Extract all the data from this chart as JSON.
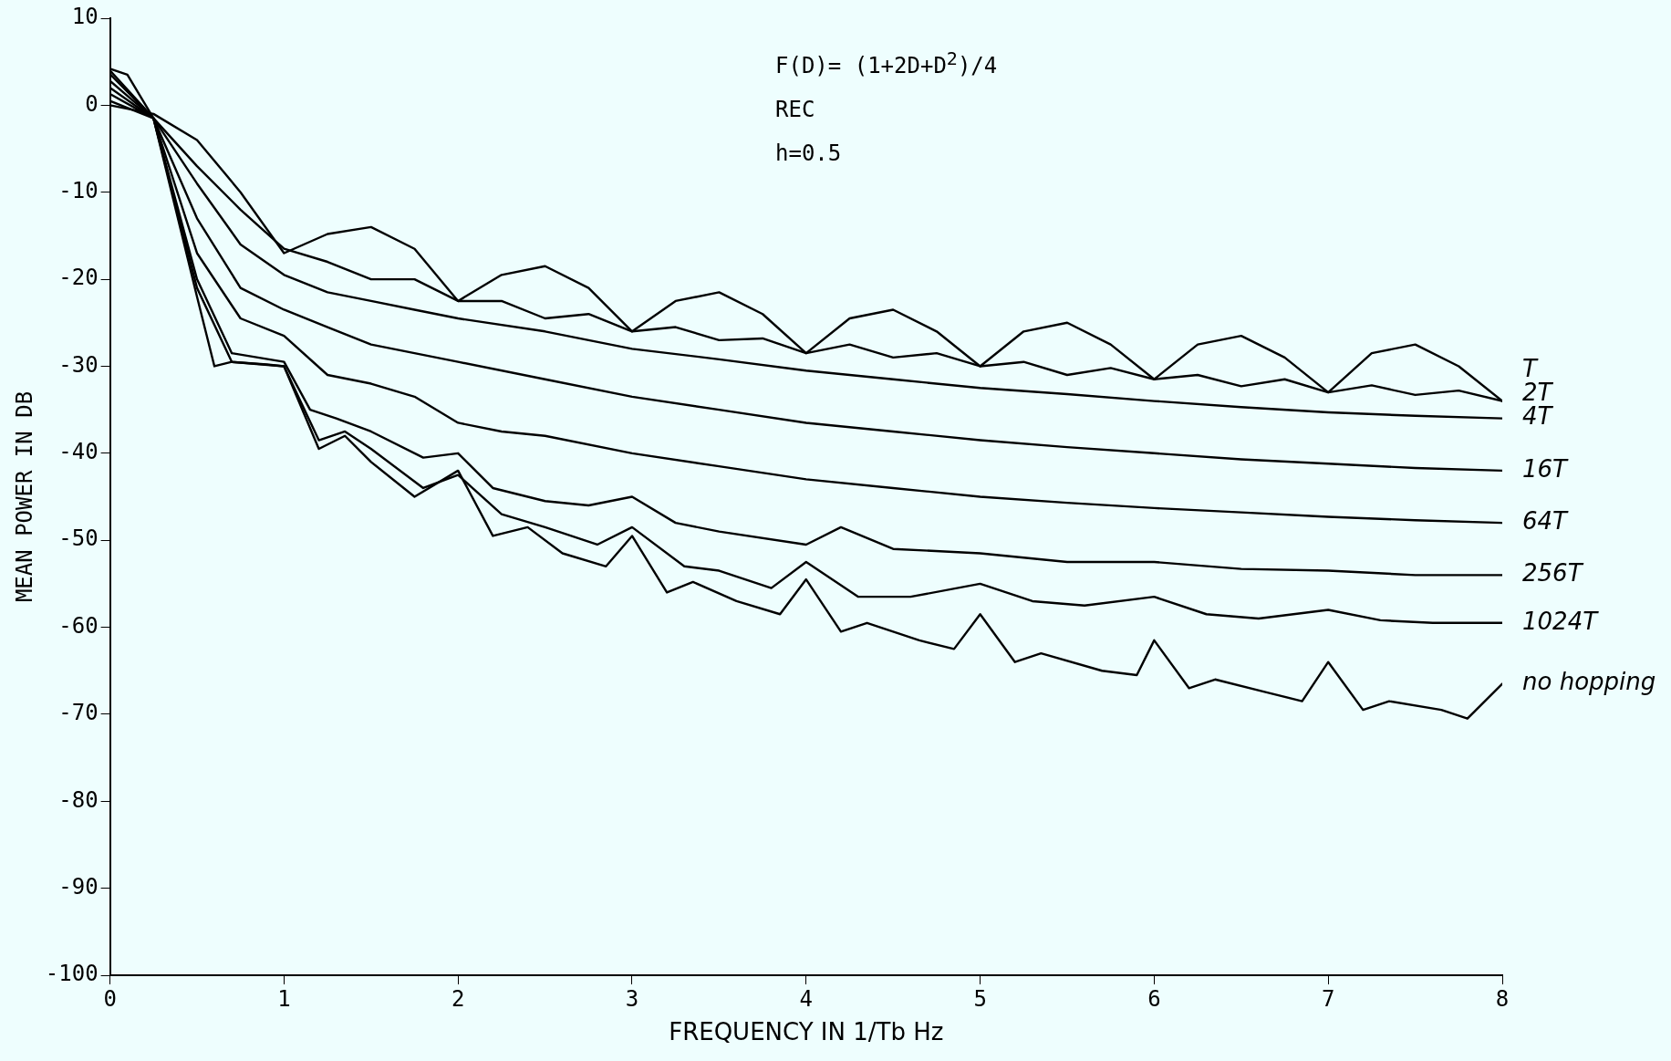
{
  "chart_data": {
    "type": "line",
    "xlabel": "FREQUENCY IN 1/Tb Hz",
    "ylabel": "MEAN POWER IN DB",
    "annotations": [
      "F(D)= (1+2D+D$^{2}$)/4",
      "REC",
      "h=0.5"
    ],
    "xlim": [
      0,
      8
    ],
    "xticks": [
      0,
      1,
      2,
      3,
      4,
      5,
      6,
      7,
      8
    ],
    "ylim": [
      -100,
      10
    ],
    "yticks": [
      -100,
      -90,
      -80,
      -70,
      -60,
      -50,
      -40,
      -30,
      -20,
      -10,
      0,
      10
    ],
    "grid": false,
    "legend": false,
    "marker": "none",
    "line_style": "solid",
    "series": [
      {
        "name": "T",
        "color": "#000000",
        "x": [
          0,
          0.25,
          0.5,
          0.75,
          1,
          1.25,
          1.5,
          1.75,
          2,
          2.25,
          2.5,
          2.75,
          3,
          3.25,
          3.5,
          3.75,
          4,
          4.25,
          4.5,
          4.75,
          5,
          5.25,
          5.5,
          5.75,
          6,
          6.25,
          6.5,
          6.75,
          7,
          7.25,
          7.5,
          7.75,
          8
        ],
        "values": [
          0,
          -1,
          -4,
          -10,
          -17,
          -14.8,
          -14,
          -16.5,
          -22.5,
          -19.5,
          -18.5,
          -21,
          -26,
          -22.5,
          -21.5,
          -24,
          -28.5,
          -24.5,
          -23.5,
          -26,
          -30,
          -26,
          -25,
          -27.5,
          -31.5,
          -27.5,
          -26.5,
          -29,
          -33,
          -28.5,
          -27.5,
          -30,
          -34
        ]
      },
      {
        "name": "2T",
        "color": "#000000",
        "x": [
          0,
          0.25,
          0.5,
          0.75,
          1,
          1.25,
          1.5,
          1.75,
          2,
          2.25,
          2.5,
          2.75,
          3,
          3.25,
          3.5,
          3.75,
          4,
          4.25,
          4.5,
          4.75,
          5,
          5.25,
          5.5,
          5.75,
          6,
          6.25,
          6.5,
          6.75,
          7,
          7.25,
          7.5,
          7.75,
          8
        ],
        "values": [
          0.5,
          -1.5,
          -7,
          -12,
          -16.5,
          -18,
          -20,
          -20,
          -22.5,
          -22.5,
          -24.5,
          -24,
          -26,
          -25.5,
          -27,
          -26.8,
          -28.5,
          -27.5,
          -29,
          -28.5,
          -30,
          -29.5,
          -31,
          -30.2,
          -31.5,
          -31,
          -32.3,
          -31.5,
          -33,
          -32.2,
          -33.3,
          -32.8,
          -34
        ]
      },
      {
        "name": "4T",
        "color": "#000000",
        "x": [
          0,
          0.25,
          0.5,
          0.75,
          1,
          1.25,
          1.5,
          1.75,
          2,
          2.5,
          3,
          3.5,
          4,
          4.5,
          5,
          5.5,
          6,
          6.5,
          7,
          7.5,
          8
        ],
        "values": [
          1.3,
          -1.5,
          -9,
          -16,
          -19.5,
          -21.5,
          -22.5,
          -23.5,
          -24.5,
          -26,
          -28,
          -29.2,
          -30.5,
          -31.5,
          -32.5,
          -33.2,
          -34,
          -34.7,
          -35.3,
          -35.7,
          -36
        ]
      },
      {
        "name": "16T",
        "color": "#000000",
        "x": [
          0,
          0.25,
          0.5,
          0.75,
          1,
          1.25,
          1.5,
          1.75,
          2,
          2.5,
          3,
          3.5,
          4,
          4.5,
          5,
          5.5,
          6,
          6.5,
          7,
          7.5,
          8
        ],
        "values": [
          2,
          -1.5,
          -13,
          -21,
          -23.5,
          -25.5,
          -27.5,
          -28.5,
          -29.5,
          -31.5,
          -33.5,
          -35,
          -36.5,
          -37.5,
          -38.5,
          -39.3,
          -40,
          -40.7,
          -41.2,
          -41.7,
          -42
        ]
      },
      {
        "name": "64T",
        "color": "#000000",
        "x": [
          0,
          0.25,
          0.5,
          0.75,
          1,
          1.25,
          1.5,
          1.75,
          2,
          2.25,
          2.5,
          3,
          3.5,
          4,
          4.5,
          5,
          5.5,
          6,
          6.5,
          7,
          7.5,
          8
        ],
        "values": [
          2.8,
          -1.5,
          -17,
          -24.5,
          -26.5,
          -31,
          -32,
          -33.5,
          -36.5,
          -37.5,
          -38,
          -40,
          -41.5,
          -43,
          -44,
          -45,
          -45.7,
          -46.3,
          -46.8,
          -47.3,
          -47.7,
          -48
        ]
      },
      {
        "name": "256T",
        "color": "#000000",
        "x": [
          0,
          0.25,
          0.5,
          0.7,
          1,
          1.15,
          1.3,
          1.5,
          1.8,
          2,
          2.2,
          2.5,
          2.75,
          3,
          3.25,
          3.5,
          4,
          4.2,
          4.5,
          5,
          5.5,
          6,
          6.5,
          7,
          7.5,
          8
        ],
        "values": [
          3.6,
          -1.5,
          -20,
          -28.5,
          -29.5,
          -35,
          -36,
          -37.5,
          -40.5,
          -40,
          -44,
          -45.5,
          -46,
          -45,
          -48,
          -49,
          -50.5,
          -48.5,
          -51,
          -51.5,
          -52.5,
          -52.5,
          -53.3,
          -53.5,
          -54,
          -54
        ]
      },
      {
        "name": "1024T",
        "color": "#000000",
        "x": [
          0,
          0.25,
          0.5,
          0.7,
          1,
          1.2,
          1.35,
          1.5,
          1.8,
          2,
          2.25,
          2.5,
          2.8,
          3,
          3.3,
          3.5,
          3.8,
          4,
          4.3,
          4.6,
          5,
          5.3,
          5.6,
          6,
          6.3,
          6.6,
          7,
          7.3,
          7.6,
          8
        ],
        "values": [
          4,
          -1.5,
          -21,
          -29.5,
          -30,
          -38.5,
          -37.5,
          -39.5,
          -44,
          -42.5,
          -47,
          -48.5,
          -50.5,
          -48.5,
          -53,
          -53.5,
          -55.5,
          -52.5,
          -56.5,
          -56.5,
          -55,
          -57,
          -57.5,
          -56.5,
          -58.5,
          -59,
          -58,
          -59.2,
          -59.5,
          -59.5
        ]
      },
      {
        "name": "no hopping",
        "color": "#000000",
        "x": [
          0,
          0.1,
          0.25,
          0.5,
          0.6,
          0.7,
          0.9,
          1,
          1.2,
          1.35,
          1.5,
          1.75,
          2,
          2.2,
          2.4,
          2.6,
          2.85,
          3,
          3.2,
          3.35,
          3.6,
          3.85,
          4,
          4.2,
          4.35,
          4.65,
          4.85,
          5,
          5.2,
          5.35,
          5.7,
          5.9,
          6,
          6.2,
          6.35,
          6.65,
          6.85,
          7,
          7.2,
          7.35,
          7.65,
          7.8,
          8
        ],
        "values": [
          4.2,
          3.5,
          -1.5,
          -22,
          -30,
          -29.5,
          -29.8,
          -30,
          -39.5,
          -38,
          -41,
          -45,
          -42,
          -49.5,
          -48.5,
          -51.5,
          -53,
          -49.5,
          -56,
          -54.8,
          -57,
          -58.5,
          -54.5,
          -60.5,
          -59.5,
          -61.5,
          -62.5,
          -58.5,
          -64,
          -63,
          -65,
          -65.5,
          -61.5,
          -67,
          -66,
          -67.5,
          -68.5,
          -64,
          -69.5,
          -68.5,
          -69.5,
          -70.5,
          -66.5
        ]
      }
    ]
  }
}
